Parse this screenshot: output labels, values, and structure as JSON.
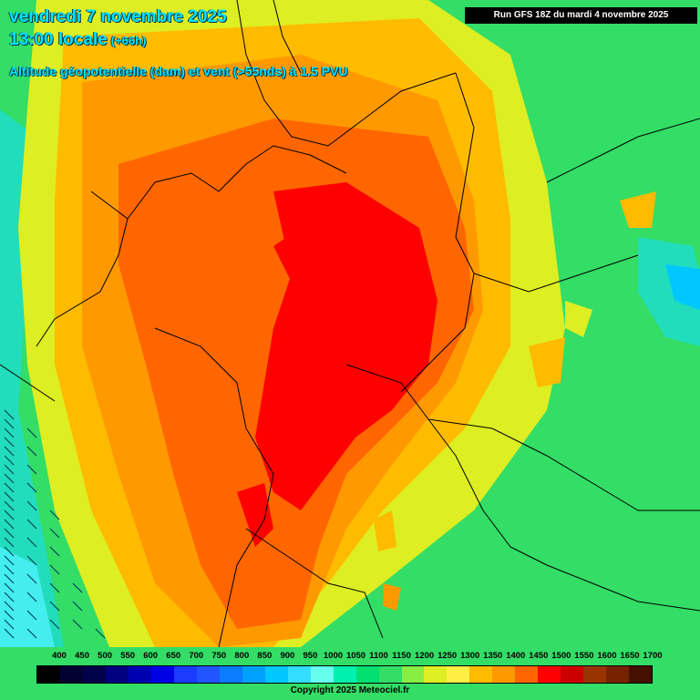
{
  "header": {
    "date": "vendredi 7 novembre 2025",
    "time": "13:00 locale",
    "offset": "(+66h)",
    "subtitle": "Altitude géopotentielle (dam) et vent (>55nds) à 1.5 PVU",
    "run_info": "Run GFS 18Z du mardi 4 novembre 2025"
  },
  "legend": {
    "labels": [
      "400",
      "450",
      "500",
      "550",
      "600",
      "650",
      "700",
      "750",
      "800",
      "850",
      "900",
      "950",
      "1000",
      "1050",
      "1100",
      "1150",
      "1200",
      "1250",
      "1300",
      "1350",
      "1400",
      "1450",
      "1500",
      "1550",
      "1600",
      "1650",
      "1700"
    ],
    "colors": [
      "#000000",
      "#000033",
      "#00004d",
      "#000080",
      "#0000b3",
      "#0000e6",
      "#1a3cff",
      "#2255ff",
      "#0a7cff",
      "#00a0ff",
      "#00c8ff",
      "#33ddff",
      "#66ffee",
      "#00f0b0",
      "#00e070",
      "#33dd66",
      "#88ee44",
      "#ddee22",
      "#ffee44",
      "#ffbb00",
      "#ff9900",
      "#ff6600",
      "#ff0000",
      "#cc0000",
      "#993300",
      "#772200",
      "#441100"
    ]
  },
  "copyright": "Copyright 2025 Meteociel.fr"
}
